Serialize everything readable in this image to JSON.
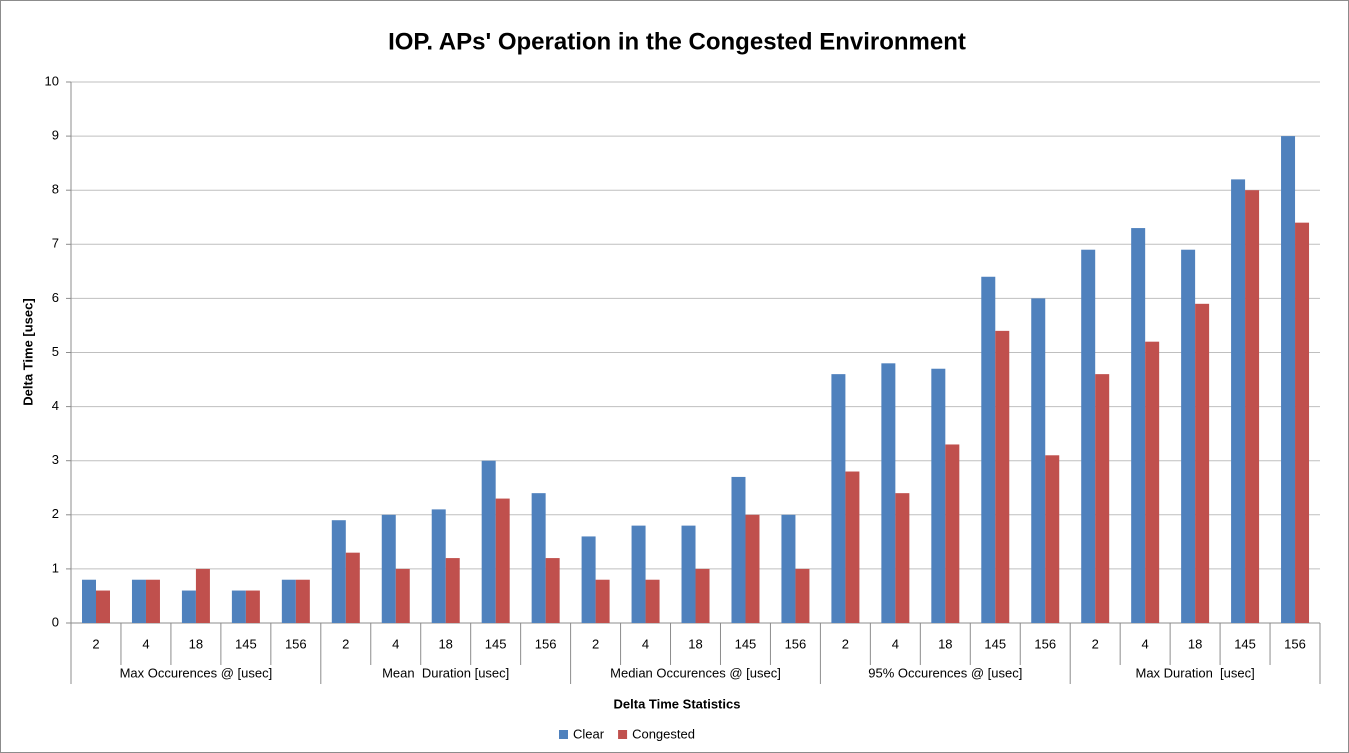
{
  "chart_data": {
    "type": "bar",
    "title": "IOP. APs' Operation in the Congested Environment",
    "x_label": "Delta Time Statistics",
    "y_label": "Delta Time [usec]",
    "categories": [
      "2",
      "4",
      "18",
      "145",
      "156",
      "2",
      "4",
      "18",
      "145",
      "156",
      "2",
      "4",
      "18",
      "145",
      "156",
      "2",
      "4",
      "18",
      "145",
      "156",
      "2",
      "4",
      "18",
      "145",
      "156"
    ],
    "category_groups": [
      "Max Occurences @ [usec]",
      "Mean  Duration [usec]",
      "Median Occurences @ [usec]",
      "95% Occurences @ [usec]",
      "Max Duration  [usec]"
    ],
    "series": [
      {
        "name": "Clear",
        "color": "#4f81bd",
        "values": [
          0.8,
          0.8,
          0.6,
          0.6,
          0.8,
          1.9,
          2.0,
          2.1,
          3.0,
          2.4,
          1.6,
          1.8,
          1.8,
          2.7,
          2.0,
          4.6,
          4.8,
          4.7,
          6.4,
          6.0,
          6.9,
          7.3,
          6.9,
          8.2,
          9.0
        ]
      },
      {
        "name": "Congested",
        "color": "#c0504d",
        "values": [
          0.6,
          0.8,
          1.0,
          0.6,
          0.8,
          1.3,
          1.0,
          1.2,
          2.3,
          1.2,
          0.8,
          0.8,
          1.0,
          2.0,
          1.0,
          2.8,
          2.4,
          3.3,
          5.4,
          3.1,
          4.6,
          5.2,
          5.9,
          8.0,
          7.4
        ]
      }
    ],
    "ylim": [
      0,
      10
    ],
    "yticks": [
      0,
      1,
      2,
      3,
      4,
      5,
      6,
      7,
      8,
      9,
      10
    ],
    "grid": true,
    "legend": "bottom"
  }
}
